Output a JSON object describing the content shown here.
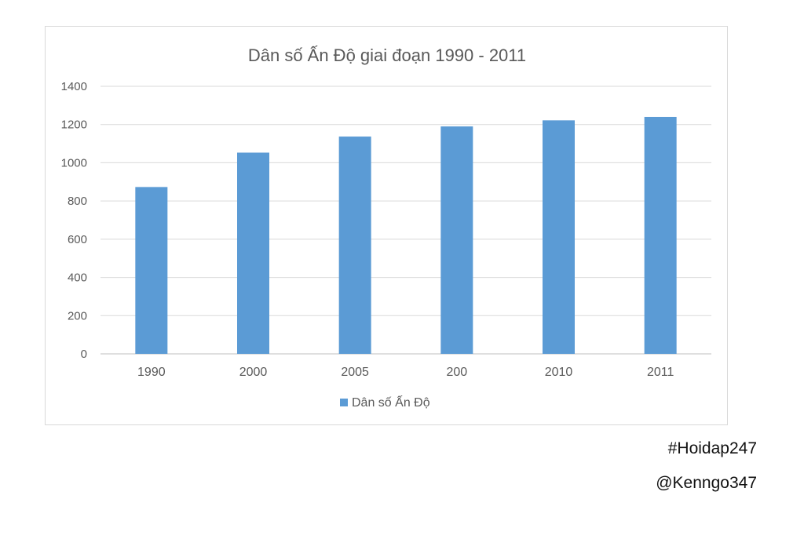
{
  "chart_data": {
    "type": "bar",
    "title": "Dân số Ấn Độ giai đoạn 1990 - 2011",
    "categories": [
      "1990",
      "2000",
      "2005",
      "200",
      "2010",
      "2011"
    ],
    "series": [
      {
        "name": "Dân số Ấn Độ",
        "values": [
          873,
          1053,
          1137,
          1190,
          1222,
          1240
        ],
        "color": "#5b9bd5"
      }
    ],
    "ylim": [
      0,
      1400
    ],
    "yticks": [
      0,
      200,
      400,
      600,
      800,
      1000,
      1200,
      1400
    ],
    "grid": true,
    "legend_position": "bottom"
  },
  "watermarks": {
    "hashtag": "#Hoidap247",
    "author": "@Kenngo347"
  }
}
